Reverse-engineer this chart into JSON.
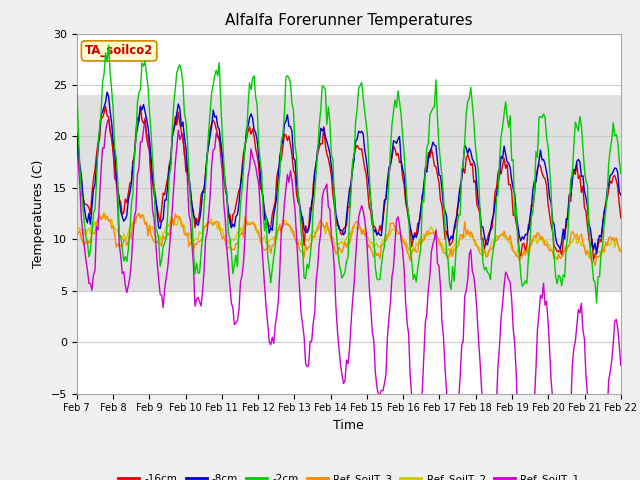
{
  "title": "Alfalfa Forerunner Temperatures",
  "xlabel": "Time",
  "ylabel": "Temperatures (C)",
  "ylim": [
    -5,
    30
  ],
  "x_tick_labels": [
    "Feb 7",
    "Feb 8",
    "Feb 9",
    "Feb 10",
    "Feb 11",
    "Feb 12",
    "Feb 13",
    "Feb 14",
    "Feb 15",
    "Feb 16",
    "Feb 17",
    "Feb 18",
    "Feb 19",
    "Feb 20",
    "Feb 21",
    "Feb 22"
  ],
  "annotation_text": "TA_soilco2",
  "annotation_color": "#cc0000",
  "annotation_bg": "#ffffcc",
  "annotation_border": "#cc8800",
  "series_colors": {
    "-16cm": "#dd0000",
    "-8cm": "#0000cc",
    "-2cm": "#00cc00",
    "Ref_SoilT_3": "#ff8800",
    "Ref_SoilT_2": "#cccc00",
    "Ref_SoilT_1": "#cc00cc"
  },
  "legend_labels": [
    "-16cm",
    "-8cm",
    "-2cm",
    "Ref_SoilT_3",
    "Ref_SoilT_2",
    "Ref_SoilT_1"
  ],
  "bg_color": "#f0f0f0",
  "plot_bg": "#ffffff",
  "grid_color": "#cccccc",
  "shade_low": 5,
  "shade_high": 24,
  "shade_color": "#e0e0e0",
  "yticks": [
    -5,
    0,
    5,
    10,
    15,
    20,
    25,
    30
  ]
}
